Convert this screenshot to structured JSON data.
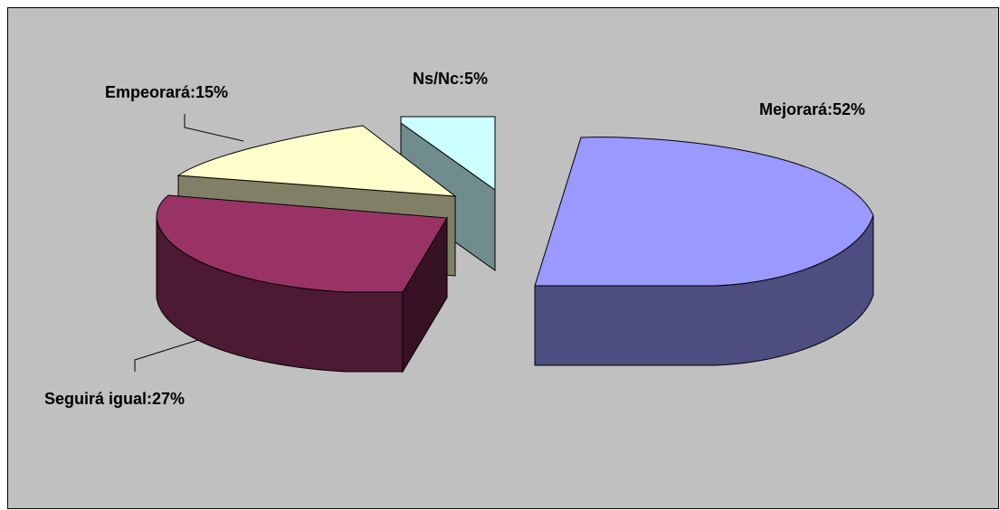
{
  "chart_data": {
    "type": "pie",
    "style": "3d-exploded",
    "slices": [
      {
        "label": "Mejorará",
        "value": 52,
        "display": "Mejorará:52%",
        "color": "#9999ff"
      },
      {
        "label": "Seguirá igual",
        "value": 27,
        "display": "Seguirá igual:27%",
        "color": "#993366"
      },
      {
        "label": "Empeorará",
        "value": 15,
        "display": "Empeorará:15%",
        "color": "#ffffcc"
      },
      {
        "label": "Ns/Nc",
        "value": 5,
        "display": "Ns/Nc:5%",
        "color": "#ccffff"
      }
    ]
  }
}
